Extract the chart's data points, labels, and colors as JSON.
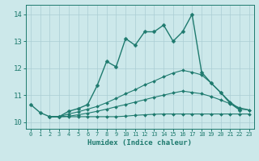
{
  "title": "",
  "xlabel": "Humidex (Indice chaleur)",
  "xlim": [
    -0.5,
    23.5
  ],
  "ylim": [
    9.75,
    14.35
  ],
  "yticks": [
    10,
    11,
    12,
    13,
    14
  ],
  "xticks": [
    0,
    1,
    2,
    3,
    4,
    5,
    6,
    7,
    8,
    9,
    10,
    11,
    12,
    13,
    14,
    15,
    16,
    17,
    18,
    19,
    20,
    21,
    22,
    23
  ],
  "background_color": "#cce8ea",
  "grid_color": "#aacdd4",
  "line_color": "#1e7a6e",
  "lines": [
    {
      "x": [
        0,
        1,
        2,
        3,
        4,
        5,
        6,
        7,
        8,
        9,
        10,
        11,
        12,
        13,
        14,
        15,
        16,
        17,
        18,
        19,
        20,
        21,
        22
      ],
      "y": [
        10.65,
        10.35,
        10.2,
        10.2,
        10.4,
        10.5,
        10.65,
        11.35,
        12.25,
        12.05,
        13.1,
        12.85,
        13.35,
        13.35,
        13.6,
        13.0,
        13.35,
        14.0,
        11.85,
        11.45,
        11.1,
        10.7,
        10.45
      ],
      "lw": 1.0,
      "markersize": 2.5
    },
    {
      "x": [
        2,
        3,
        4,
        5,
        6,
        7,
        8,
        9,
        10,
        11,
        12,
        13,
        14,
        15,
        16,
        17,
        18,
        19,
        20,
        21,
        22,
        23
      ],
      "y": [
        10.2,
        10.2,
        10.3,
        10.38,
        10.48,
        10.58,
        10.72,
        10.88,
        11.05,
        11.2,
        11.38,
        11.52,
        11.68,
        11.82,
        11.92,
        11.85,
        11.75,
        11.45,
        11.1,
        10.75,
        10.48,
        10.45
      ],
      "lw": 0.8,
      "markersize": 2.0
    },
    {
      "x": [
        2,
        3,
        4,
        5,
        6,
        7,
        8,
        9,
        10,
        11,
        12,
        13,
        14,
        15,
        16,
        17,
        18,
        19,
        20,
        21,
        22,
        23
      ],
      "y": [
        10.2,
        10.2,
        10.22,
        10.27,
        10.33,
        10.4,
        10.48,
        10.57,
        10.65,
        10.74,
        10.83,
        10.92,
        11.0,
        11.08,
        11.15,
        11.1,
        11.05,
        10.95,
        10.82,
        10.68,
        10.53,
        10.45
      ],
      "lw": 0.8,
      "markersize": 2.0
    },
    {
      "x": [
        2,
        3,
        4,
        5,
        6,
        7,
        8,
        9,
        10,
        11,
        12,
        13,
        14,
        15,
        16,
        17,
        18,
        19,
        20,
        21,
        22,
        23
      ],
      "y": [
        10.2,
        10.2,
        10.2,
        10.2,
        10.2,
        10.2,
        10.2,
        10.2,
        10.22,
        10.25,
        10.27,
        10.29,
        10.3,
        10.3,
        10.3,
        10.3,
        10.3,
        10.3,
        10.3,
        10.3,
        10.3,
        10.3
      ],
      "lw": 0.8,
      "markersize": 2.0
    }
  ]
}
